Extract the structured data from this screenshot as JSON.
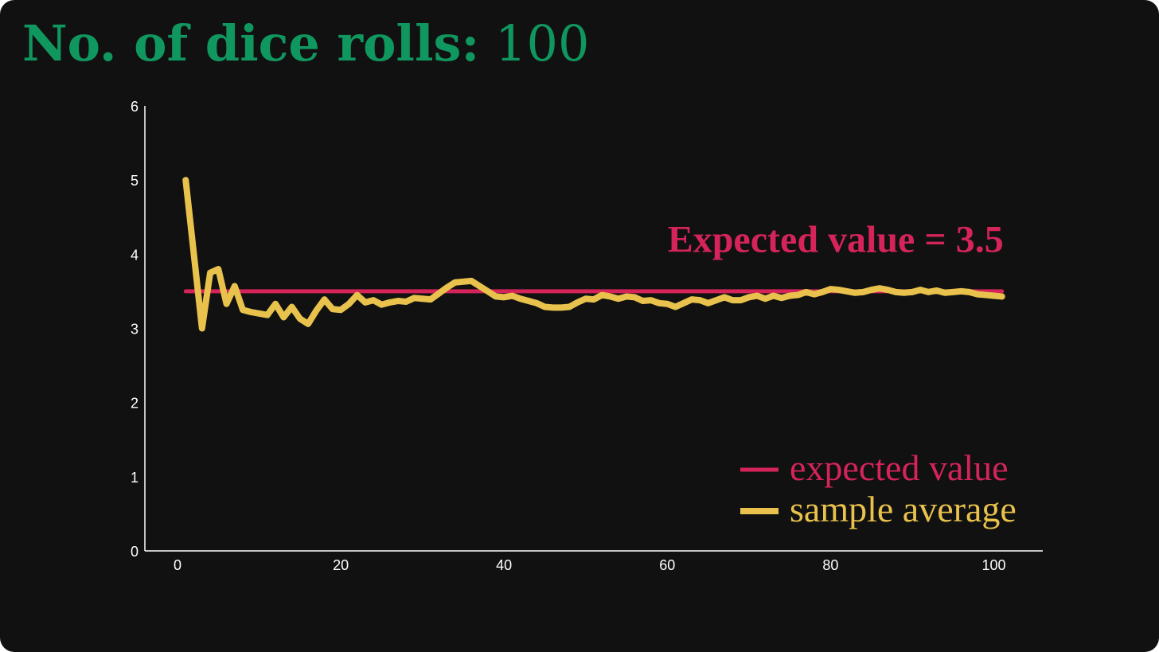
{
  "heading": {
    "label": "No. of dice rolls:",
    "count": "100",
    "color": "#10975f"
  },
  "chart_data": {
    "type": "line",
    "xlim": [
      -4,
      106
    ],
    "ylim": [
      0,
      6
    ],
    "x_ticks": [
      0,
      20,
      40,
      60,
      80,
      100
    ],
    "y_ticks": [
      0,
      1,
      2,
      3,
      4,
      5,
      6
    ],
    "grid": false,
    "legend_position": "bottom-right",
    "annotation": {
      "text": "Expected value = 3.5",
      "x": 101,
      "y": 4.2
    },
    "colors": {
      "expected": "#d4245a",
      "sample": "#e8c24c",
      "axis": "#ffffff"
    },
    "series": [
      {
        "name": "expected value",
        "x": [
          1,
          101
        ],
        "y": [
          3.5,
          3.5
        ]
      },
      {
        "name": "sample average",
        "x": [
          1,
          2,
          3,
          4,
          5,
          6,
          7,
          8,
          9,
          10,
          11,
          12,
          13,
          14,
          15,
          16,
          17,
          18,
          19,
          20,
          21,
          22,
          23,
          24,
          25,
          26,
          27,
          28,
          29,
          30,
          31,
          32,
          33,
          34,
          35,
          36,
          37,
          38,
          39,
          40,
          41,
          42,
          43,
          44,
          45,
          46,
          47,
          48,
          49,
          50,
          51,
          52,
          53,
          54,
          55,
          56,
          57,
          58,
          59,
          60,
          61,
          62,
          63,
          64,
          65,
          66,
          67,
          68,
          69,
          70,
          71,
          72,
          73,
          74,
          75,
          76,
          77,
          78,
          79,
          80,
          81,
          82,
          83,
          84,
          85,
          86,
          87,
          88,
          89,
          90,
          91,
          92,
          93,
          94,
          95,
          96,
          97,
          98,
          99,
          100,
          101
        ],
        "y": [
          5.0,
          4.0,
          3.0,
          3.75,
          3.8,
          3.33,
          3.57,
          3.25,
          3.22,
          3.2,
          3.18,
          3.33,
          3.15,
          3.29,
          3.13,
          3.06,
          3.24,
          3.39,
          3.26,
          3.25,
          3.33,
          3.45,
          3.35,
          3.38,
          3.32,
          3.35,
          3.37,
          3.36,
          3.41,
          3.4,
          3.39,
          3.47,
          3.55,
          3.62,
          3.63,
          3.64,
          3.57,
          3.5,
          3.43,
          3.42,
          3.44,
          3.4,
          3.37,
          3.34,
          3.29,
          3.28,
          3.28,
          3.29,
          3.35,
          3.4,
          3.39,
          3.45,
          3.43,
          3.4,
          3.43,
          3.42,
          3.37,
          3.38,
          3.34,
          3.33,
          3.29,
          3.34,
          3.39,
          3.38,
          3.34,
          3.38,
          3.42,
          3.38,
          3.38,
          3.42,
          3.44,
          3.4,
          3.44,
          3.41,
          3.44,
          3.45,
          3.49,
          3.46,
          3.49,
          3.53,
          3.52,
          3.5,
          3.48,
          3.49,
          3.52,
          3.54,
          3.52,
          3.49,
          3.48,
          3.49,
          3.52,
          3.49,
          3.51,
          3.48,
          3.49,
          3.5,
          3.49,
          3.46,
          3.45,
          3.44,
          3.43
        ]
      }
    ]
  }
}
